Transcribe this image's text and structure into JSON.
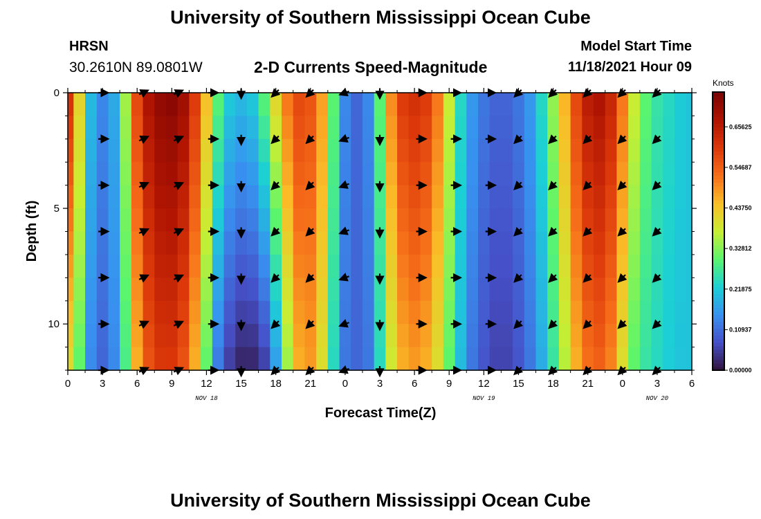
{
  "page": {
    "title_top": "University of Southern Mississippi Ocean Cube",
    "title_bottom": "University of Southern Mississippi Ocean Cube",
    "station": "HRSN",
    "coordinates": "30.2610N  89.0801W",
    "subtitle": "2-D Currents Speed-Magnitude",
    "model_label": "Model Start Time",
    "model_time": "11/18/2021 Hour 09"
  },
  "chart_data": {
    "type": "heatmap",
    "title": "2-D Currents Speed-Magnitude",
    "xlabel": "Forecast Time(Z)",
    "ylabel": "Depth (ft)",
    "x_hours_range": [
      0,
      54
    ],
    "ylim": [
      0,
      12
    ],
    "y_inverted": true,
    "x_ticks": [
      {
        "h": 0,
        "label": "0"
      },
      {
        "h": 3,
        "label": "3"
      },
      {
        "h": 6,
        "label": "6"
      },
      {
        "h": 9,
        "label": "9"
      },
      {
        "h": 12,
        "label": "12"
      },
      {
        "h": 15,
        "label": "15"
      },
      {
        "h": 18,
        "label": "18"
      },
      {
        "h": 21,
        "label": "21"
      },
      {
        "h": 24,
        "label": "0"
      },
      {
        "h": 27,
        "label": "3"
      },
      {
        "h": 30,
        "label": "6"
      },
      {
        "h": 33,
        "label": "9"
      },
      {
        "h": 36,
        "label": "12"
      },
      {
        "h": 39,
        "label": "15"
      },
      {
        "h": 42,
        "label": "18"
      },
      {
        "h": 45,
        "label": "21"
      },
      {
        "h": 48,
        "label": "0"
      },
      {
        "h": 51,
        "label": "3"
      },
      {
        "h": 54,
        "label": "6"
      }
    ],
    "date_labels": [
      {
        "h": 12,
        "label": "NOV 18"
      },
      {
        "h": 36,
        "label": "NOV 19"
      },
      {
        "h": 51,
        "label": "NOV 20"
      }
    ],
    "y_ticks": [
      {
        "v": 0,
        "label": "0"
      },
      {
        "v": 5,
        "label": "5"
      },
      {
        "v": 10,
        "label": "10"
      }
    ],
    "colorbar": {
      "title": "Knots",
      "range": [
        0,
        0.75
      ],
      "ticks": [
        {
          "v": 0.0,
          "label": "0.00000"
        },
        {
          "v": 0.109375,
          "label": "0.10937"
        },
        {
          "v": 0.21875,
          "label": "0.21875"
        },
        {
          "v": 0.328125,
          "label": "0.32812"
        },
        {
          "v": 0.4375,
          "label": "0.43750"
        },
        {
          "v": 0.546875,
          "label": "0.54687"
        },
        {
          "v": 0.65625,
          "label": "0.65625"
        }
      ]
    },
    "speed_profile": {
      "hours": [
        0,
        1,
        2,
        3,
        4,
        5,
        6,
        7,
        8,
        9,
        10,
        11,
        12,
        13,
        14,
        15,
        16,
        17,
        18,
        19,
        20,
        21,
        22,
        23,
        24,
        25,
        26,
        27,
        28,
        29,
        30,
        31,
        32,
        33,
        34,
        35,
        36,
        37,
        38,
        39,
        40,
        41,
        42,
        43,
        44,
        45,
        46,
        47,
        48,
        49,
        50,
        51,
        52,
        53,
        54
      ],
      "surface_knots": [
        0.62,
        0.42,
        0.2,
        0.14,
        0.18,
        0.35,
        0.58,
        0.68,
        0.72,
        0.73,
        0.7,
        0.6,
        0.45,
        0.3,
        0.22,
        0.2,
        0.22,
        0.3,
        0.42,
        0.52,
        0.58,
        0.56,
        0.48,
        0.3,
        0.14,
        0.1,
        0.14,
        0.3,
        0.5,
        0.6,
        0.62,
        0.6,
        0.52,
        0.38,
        0.24,
        0.16,
        0.12,
        0.1,
        0.1,
        0.12,
        0.16,
        0.24,
        0.34,
        0.46,
        0.58,
        0.66,
        0.68,
        0.64,
        0.52,
        0.38,
        0.3,
        0.26,
        0.24,
        0.22,
        0.21
      ],
      "bottom_knots": [
        0.4,
        0.3,
        0.14,
        0.1,
        0.14,
        0.28,
        0.46,
        0.56,
        0.6,
        0.6,
        0.56,
        0.46,
        0.3,
        0.12,
        0.05,
        0.02,
        0.02,
        0.05,
        0.16,
        0.34,
        0.46,
        0.48,
        0.4,
        0.24,
        0.12,
        0.1,
        0.12,
        0.24,
        0.38,
        0.46,
        0.48,
        0.46,
        0.4,
        0.3,
        0.2,
        0.12,
        0.08,
        0.06,
        0.06,
        0.08,
        0.12,
        0.18,
        0.26,
        0.36,
        0.46,
        0.52,
        0.54,
        0.5,
        0.4,
        0.3,
        0.26,
        0.24,
        0.22,
        0.21,
        0.21
      ]
    },
    "vector_columns": [
      {
        "h": 3,
        "dir": "E"
      },
      {
        "h": 6.5,
        "dir": "ENE"
      },
      {
        "h": 9.5,
        "dir": "ENE"
      },
      {
        "h": 12.5,
        "dir": "E"
      },
      {
        "h": 15,
        "dir": "S"
      },
      {
        "h": 18,
        "dir": "SW"
      },
      {
        "h": 21,
        "dir": "SW"
      },
      {
        "h": 24,
        "dir": "WSW"
      },
      {
        "h": 27,
        "dir": "S"
      },
      {
        "h": 30.5,
        "dir": "E"
      },
      {
        "h": 33.5,
        "dir": "E"
      },
      {
        "h": 36.5,
        "dir": "E"
      },
      {
        "h": 39,
        "dir": "SW"
      },
      {
        "h": 42,
        "dir": "SW"
      },
      {
        "h": 45,
        "dir": "SW"
      },
      {
        "h": 48,
        "dir": "SW"
      },
      {
        "h": 51,
        "dir": "SW"
      }
    ],
    "vector_depths": [
      0,
      2,
      4,
      6,
      8,
      10,
      12
    ]
  }
}
